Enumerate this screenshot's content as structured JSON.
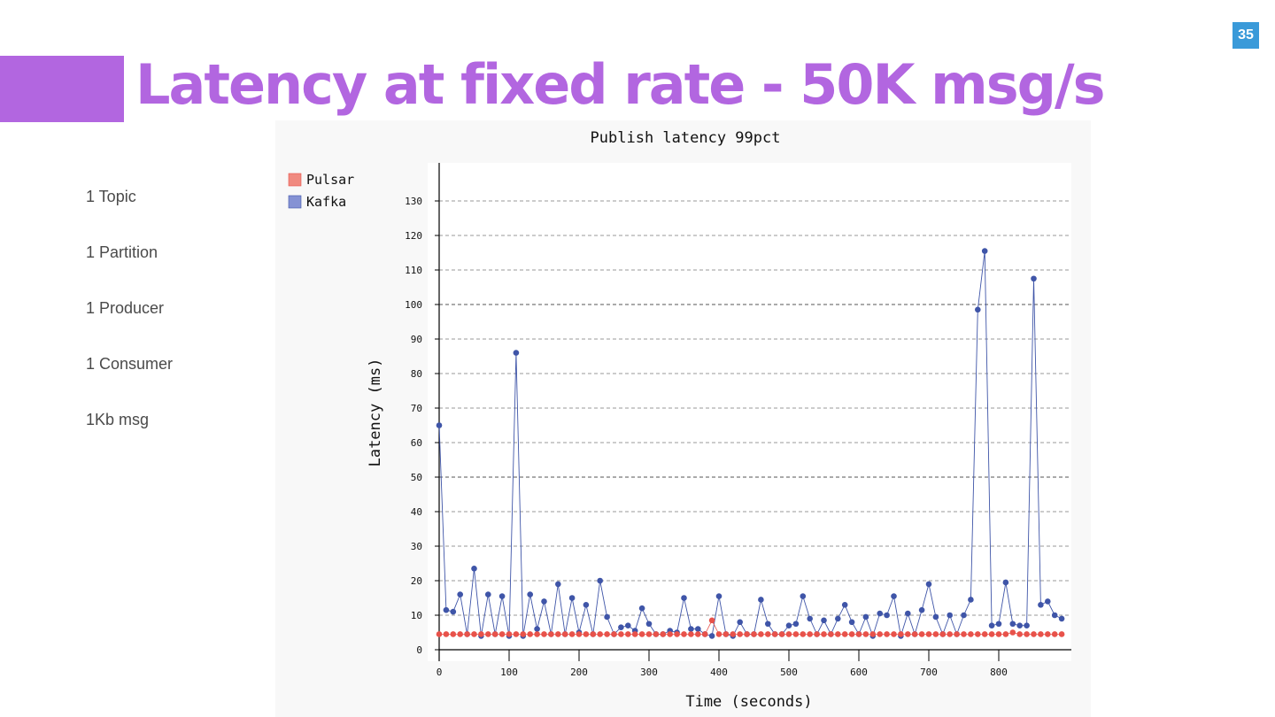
{
  "slide": {
    "number": "35",
    "title": "Latency at fixed rate - 50K msg/s",
    "accent_color": "#b266e0",
    "badge_color": "#3a9ad9"
  },
  "params": [
    "1 Topic",
    "1 Partition",
    "1 Producer",
    "1 Consumer",
    "1Kb msg"
  ],
  "chart_data": {
    "type": "line",
    "title": "Publish latency 99pct",
    "xlabel": "Time (seconds)",
    "ylabel": "Latency (ms)",
    "xlim": [
      0,
      910
    ],
    "ylim": [
      0,
      140
    ],
    "x_ticks": [
      0,
      100,
      200,
      300,
      400,
      500,
      600,
      700,
      800
    ],
    "y_ticks": [
      0,
      10,
      20,
      30,
      40,
      50,
      60,
      70,
      80,
      90,
      100,
      110,
      120,
      130
    ],
    "grid": "horizontal dashed",
    "legend_position": "top-left",
    "series": [
      {
        "name": "Pulsar",
        "color": "#e8524a",
        "legend_color": "#f08a80",
        "x": [
          0,
          10,
          20,
          30,
          40,
          50,
          60,
          70,
          80,
          90,
          100,
          110,
          120,
          130,
          140,
          150,
          160,
          170,
          180,
          190,
          200,
          210,
          220,
          230,
          240,
          250,
          260,
          270,
          280,
          290,
          300,
          310,
          320,
          330,
          340,
          350,
          360,
          370,
          380,
          390,
          400,
          410,
          420,
          430,
          440,
          450,
          460,
          470,
          480,
          490,
          500,
          510,
          520,
          530,
          540,
          550,
          560,
          570,
          580,
          590,
          600,
          610,
          620,
          630,
          640,
          650,
          660,
          670,
          680,
          690,
          700,
          710,
          720,
          730,
          740,
          750,
          760,
          770,
          780,
          790,
          800,
          810,
          820,
          830,
          840,
          850,
          860,
          870,
          880,
          890
        ],
        "values": [
          4.5,
          4.5,
          4.5,
          4.5,
          4.5,
          4.5,
          4.5,
          4.5,
          4.5,
          4.5,
          4.5,
          4.5,
          4.5,
          4.5,
          4.5,
          4.5,
          4.5,
          4.5,
          4.5,
          4.5,
          4.5,
          4.5,
          4.5,
          4.5,
          4.5,
          4.5,
          4.5,
          4.5,
          4.5,
          4.5,
          4.5,
          4.5,
          4.5,
          4.5,
          4.5,
          4.5,
          4.5,
          4.5,
          4.5,
          8.5,
          4.5,
          4.5,
          4.5,
          4.5,
          4.5,
          4.5,
          4.5,
          4.5,
          4.5,
          4.5,
          4.5,
          4.5,
          4.5,
          4.5,
          4.5,
          4.5,
          4.5,
          4.5,
          4.5,
          4.5,
          4.5,
          4.5,
          4.5,
          4.5,
          4.5,
          4.5,
          4.5,
          4.5,
          4.5,
          4.5,
          4.5,
          4.5,
          4.5,
          4.5,
          4.5,
          4.5,
          4.5,
          4.5,
          4.5,
          4.5,
          4.5,
          4.5,
          5,
          4.5,
          4.5,
          4.5,
          4.5,
          4.5,
          4.5,
          4.5
        ]
      },
      {
        "name": "Kafka",
        "color": "#3f55a8",
        "legend_color": "#8592d4",
        "x": [
          0,
          10,
          20,
          30,
          40,
          50,
          60,
          70,
          80,
          90,
          100,
          110,
          120,
          130,
          140,
          150,
          160,
          170,
          180,
          190,
          200,
          210,
          220,
          230,
          240,
          250,
          260,
          270,
          280,
          290,
          300,
          310,
          320,
          330,
          340,
          350,
          360,
          370,
          380,
          390,
          400,
          410,
          420,
          430,
          440,
          450,
          460,
          470,
          480,
          490,
          500,
          510,
          520,
          530,
          540,
          550,
          560,
          570,
          580,
          590,
          600,
          610,
          620,
          630,
          640,
          650,
          660,
          670,
          680,
          690,
          700,
          710,
          720,
          730,
          740,
          750,
          760,
          770,
          780,
          790,
          800,
          810,
          820,
          830,
          840,
          850,
          860,
          870,
          880,
          890
        ],
        "values": [
          65,
          11.5,
          11,
          16,
          4.5,
          23.5,
          4,
          16,
          4.5,
          15.5,
          4,
          86,
          4,
          16,
          6,
          14,
          4.5,
          19,
          4.5,
          15,
          5,
          13,
          4.5,
          20,
          9.5,
          4.5,
          6.5,
          7,
          5.5,
          12,
          7.5,
          4.5,
          4.5,
          5.5,
          5,
          15,
          6,
          6,
          4.5,
          4,
          15.5,
          4.5,
          4,
          8,
          4.5,
          4.5,
          14.5,
          7.5,
          4.5,
          4.5,
          7,
          7.5,
          15.5,
          9,
          4.5,
          8.5,
          4.5,
          9,
          13,
          8,
          4.5,
          9.5,
          4,
          10.5,
          10,
          15.5,
          4,
          10.5,
          4.5,
          11.5,
          19,
          9.5,
          4.5,
          10,
          4.5,
          10,
          14.5,
          98.5,
          115.5,
          7,
          7.5,
          19.5,
          7.5,
          7,
          7,
          107.5,
          13,
          14,
          10,
          9
        ]
      }
    ]
  }
}
